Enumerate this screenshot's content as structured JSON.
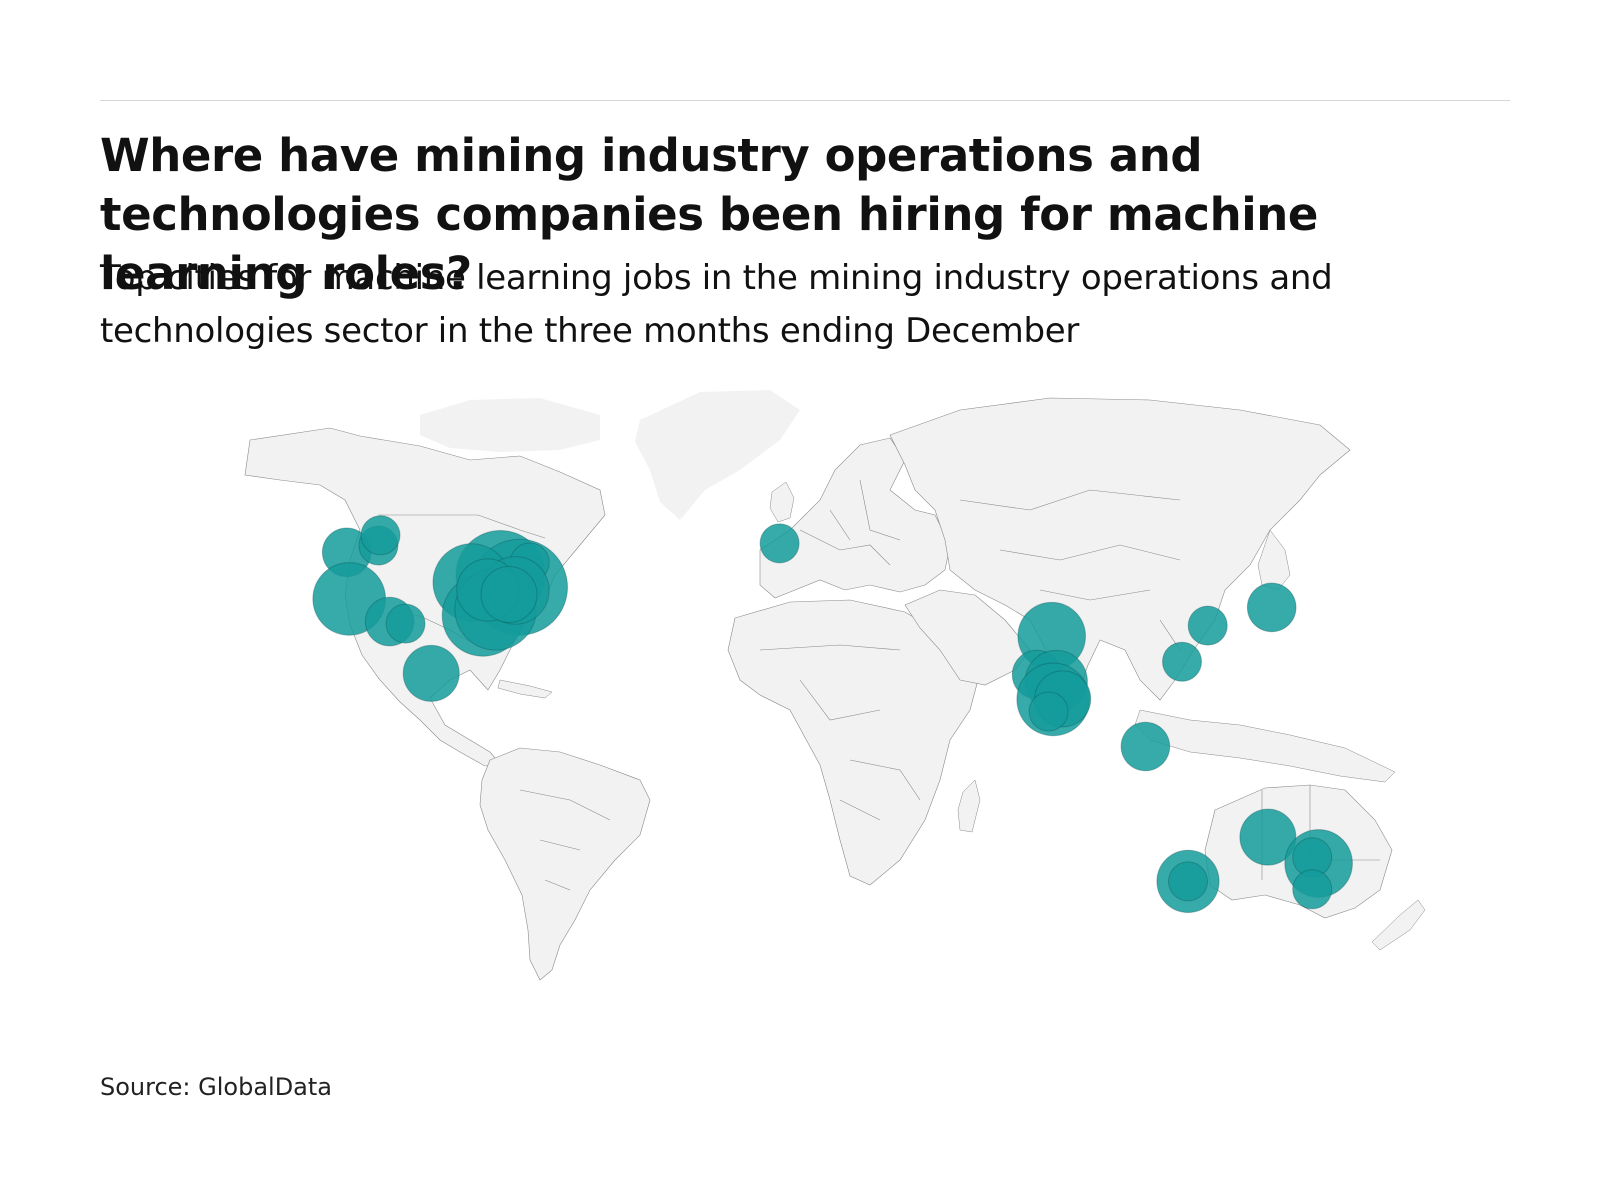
{
  "header": {
    "title": "Where have mining industry operations and technologies companies been hiring for machine learning roles?",
    "subtitle": "Top cities for machine learning jobs in the mining industry operations and technologies sector in the three months ending December"
  },
  "footer": {
    "source": "Source: GlobalData"
  },
  "colors": {
    "land": "#f2f2f2",
    "border": "#8a8a8a",
    "bubble": "#149b9b",
    "bubble_dark": "#0b4f4f",
    "rule": "#d6d6d6"
  },
  "chart_data": {
    "type": "scatter",
    "encoding": "bubble map of city locations; bubble size indicates number of machine learning jobs (relative)",
    "points": [
      {
        "lon": -123.1,
        "lat": 49.3,
        "size": 2
      },
      {
        "lon": -114.1,
        "lat": 51.0,
        "size": 1
      },
      {
        "lon": -113.5,
        "lat": 53.5,
        "size": 1
      },
      {
        "lon": -79.4,
        "lat": 43.7,
        "size": 10
      },
      {
        "lon": -74.0,
        "lat": 40.7,
        "size": 12
      },
      {
        "lon": -71.1,
        "lat": 46.8,
        "size": 1
      },
      {
        "lon": -122.4,
        "lat": 37.8,
        "size": 6
      },
      {
        "lon": -87.6,
        "lat": 41.9,
        "size": 7
      },
      {
        "lon": -84.4,
        "lat": 33.7,
        "size": 8
      },
      {
        "lon": -80.8,
        "lat": 35.2,
        "size": 8
      },
      {
        "lon": -75.2,
        "lat": 39.9,
        "size": 5
      },
      {
        "lon": -83.0,
        "lat": 40.0,
        "size": 4
      },
      {
        "lon": -77.0,
        "lat": 38.9,
        "size": 3
      },
      {
        "lon": -110.9,
        "lat": 32.2,
        "size": 2
      },
      {
        "lon": -106.4,
        "lat": 31.7,
        "size": 1
      },
      {
        "lon": -99.1,
        "lat": 19.4,
        "size": 3
      },
      {
        "lon": -0.1,
        "lat": 51.5,
        "size": 1
      },
      {
        "lon": 77.2,
        "lat": 28.6,
        "size": 5
      },
      {
        "lon": 72.9,
        "lat": 19.1,
        "size": 2
      },
      {
        "lon": 78.5,
        "lat": 17.4,
        "size": 4
      },
      {
        "lon": 77.6,
        "lat": 13.0,
        "size": 6
      },
      {
        "lon": 80.3,
        "lat": 13.1,
        "size": 3
      },
      {
        "lon": 76.3,
        "lat": 10.0,
        "size": 1
      },
      {
        "lon": 103.8,
        "lat": 1.35,
        "size": 2
      },
      {
        "lon": 139.7,
        "lat": 35.7,
        "size": 2
      },
      {
        "lon": 121.5,
        "lat": 31.2,
        "size": 1
      },
      {
        "lon": 114.2,
        "lat": 22.3,
        "size": 1
      },
      {
        "lon": 115.9,
        "lat": -31.95,
        "size": 4
      },
      {
        "lon": 115.9,
        "lat": -31.95,
        "size": 1
      },
      {
        "lon": 138.6,
        "lat": -21.0,
        "size": 3
      },
      {
        "lon": 153.0,
        "lat": -27.5,
        "size": 5
      },
      {
        "lon": 151.2,
        "lat": -26.0,
        "size": 1
      },
      {
        "lon": 151.2,
        "lat": -33.9,
        "size": 1
      }
    ]
  }
}
